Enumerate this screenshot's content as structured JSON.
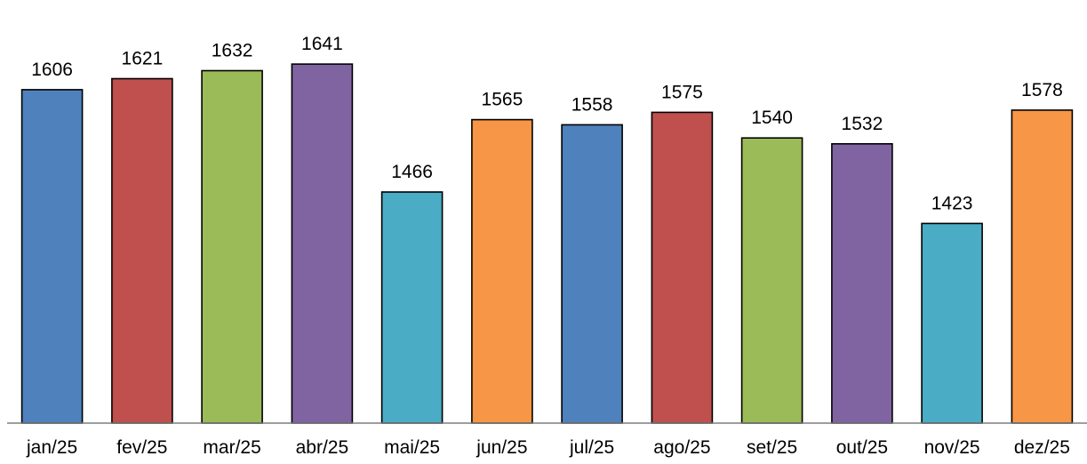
{
  "chart_data": {
    "type": "bar",
    "categories": [
      "jan/25",
      "fev/25",
      "mar/25",
      "abr/25",
      "mai/25",
      "jun/25",
      "jul/25",
      "ago/25",
      "set/25",
      "out/25",
      "nov/25",
      "dez/25"
    ],
    "values": [
      1606,
      1621,
      1632,
      1641,
      1466,
      1565,
      1558,
      1575,
      1540,
      1532,
      1423,
      1578
    ],
    "colors": [
      "#4f81bd",
      "#c0504d",
      "#9bbb59",
      "#8064a2",
      "#4bacc6",
      "#f79646",
      "#4f81bd",
      "#c0504d",
      "#9bbb59",
      "#8064a2",
      "#4bacc6",
      "#f79646"
    ],
    "title": "",
    "xlabel": "",
    "ylabel": "",
    "ylim": [
      1150,
      1680
    ],
    "grid": false,
    "legend": "none",
    "data_labels": true
  }
}
